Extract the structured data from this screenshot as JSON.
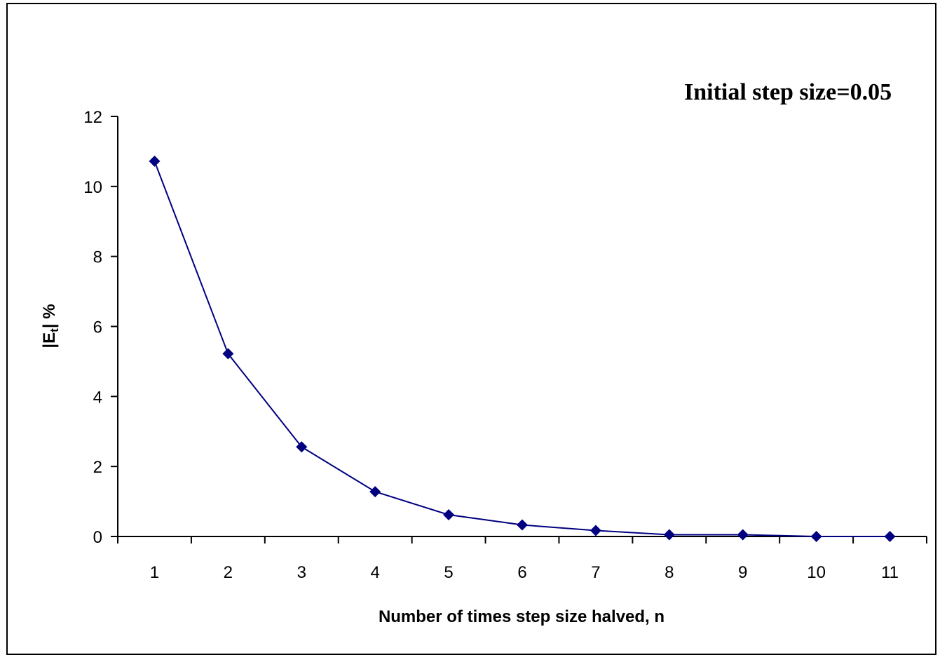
{
  "chart_data": {
    "type": "line",
    "title": "",
    "annotation": "Initial step size=0.05",
    "xlabel": "Number of times step size halved, n",
    "ylabel_main": "|E",
    "ylabel_sub": "t",
    "ylabel_tail": "| %",
    "categories": [
      1,
      2,
      3,
      4,
      5,
      6,
      7,
      8,
      9,
      10,
      11
    ],
    "x_tick_labels": [
      "1",
      "2",
      "3",
      "4",
      "5",
      "6",
      "7",
      "8",
      "9",
      "10",
      "11"
    ],
    "series": [
      {
        "values": [
          10.72,
          5.22,
          2.56,
          1.28,
          0.62,
          0.33,
          0.17,
          0.05,
          0.05,
          0.0,
          0.0
        ],
        "color": "#000080",
        "marker": "diamond"
      }
    ],
    "ylim": [
      0,
      12
    ],
    "y_ticks": [
      0,
      2,
      4,
      6,
      8,
      10,
      12
    ],
    "y_tick_labels": [
      "0",
      "2",
      "4",
      "6",
      "8",
      "10",
      "12"
    ],
    "grid": false,
    "legend": "none"
  }
}
